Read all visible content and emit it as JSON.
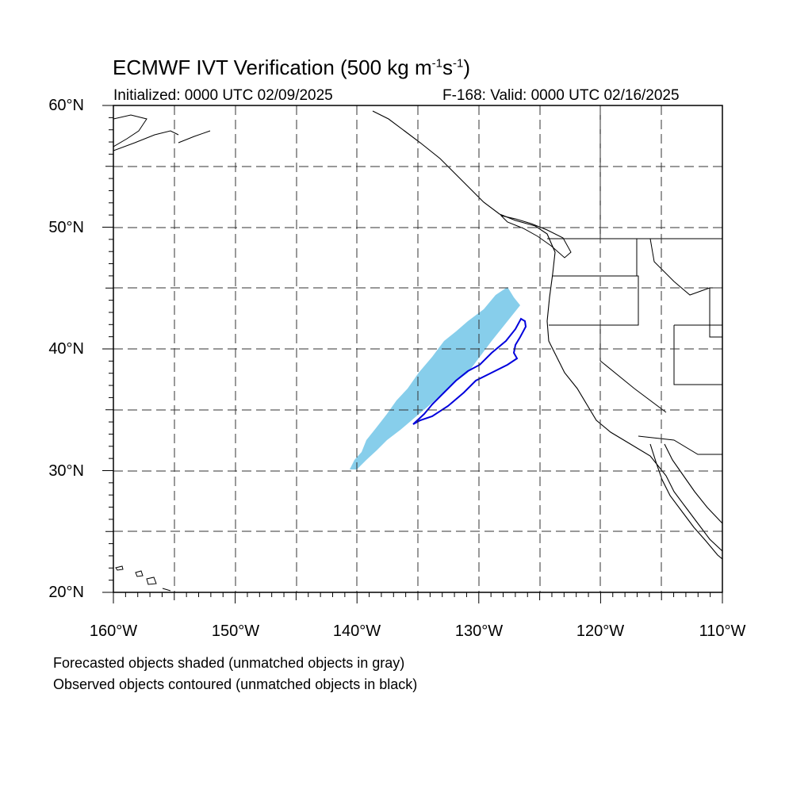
{
  "title_prefix": "ECMWF IVT Verification (500 kg m",
  "title_sup1": "-1",
  "title_mid": "s",
  "title_sup2": "-1",
  "title_suffix": ")",
  "initialized": "Initialized: 0000 UTC 02/09/2025",
  "valid": "F-168: Valid: 0000 UTC 02/16/2025",
  "lat_labels": [
    "60°N",
    "50°N",
    "40°N",
    "30°N",
    "20°N"
  ],
  "lon_labels": [
    "160°W",
    "150°W",
    "140°W",
    "130°W",
    "120°W",
    "110°W"
  ],
  "footnote_forecast": "Forecasted objects shaded (unmatched objects in gray)",
  "footnote_observed": "Observed objects contoured (unmatched objects in black)",
  "colors": {
    "forecast_fill": "#87ceeb",
    "observed_contour": "#0000dd"
  }
}
